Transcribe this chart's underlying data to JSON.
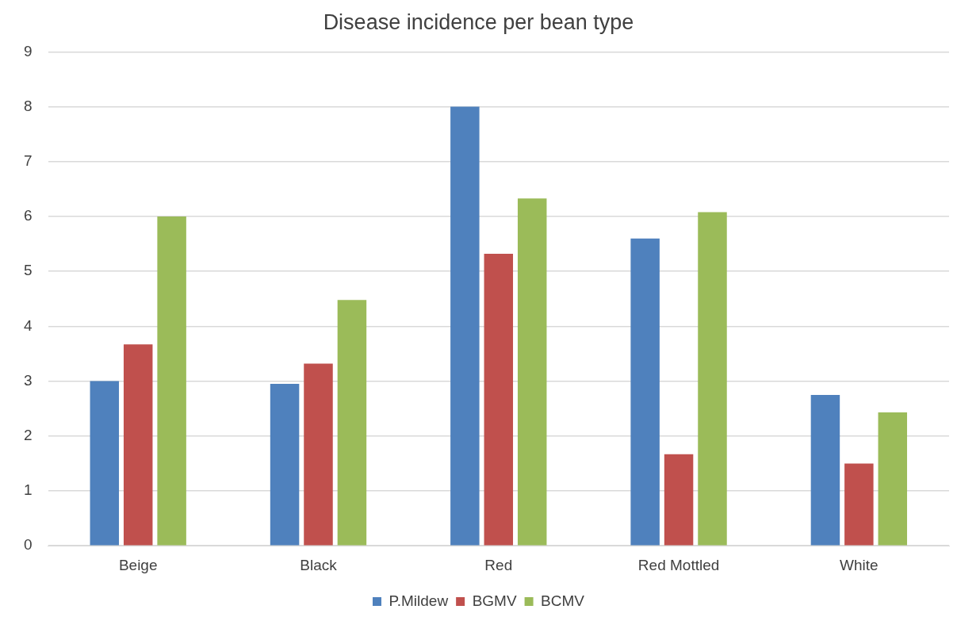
{
  "chart_data": {
    "type": "bar",
    "title": "Disease incidence per bean type",
    "categories": [
      "Beige",
      "Black",
      "Red",
      "Red Mottled",
      "White"
    ],
    "series": [
      {
        "name": "P.Mildew",
        "color": "#4f81bd",
        "values": [
          3.0,
          2.95,
          8.0,
          5.6,
          2.75
        ]
      },
      {
        "name": "BGMV",
        "color": "#c0504d",
        "values": [
          3.67,
          3.32,
          5.32,
          1.67,
          1.5
        ]
      },
      {
        "name": "BCMV",
        "color": "#9bbb59",
        "values": [
          6.0,
          4.48,
          6.33,
          6.08,
          2.43
        ]
      }
    ],
    "ylim": [
      0,
      9
    ],
    "yticks": [
      0,
      1,
      2,
      3,
      4,
      5,
      6,
      7,
      8,
      9
    ],
    "grid": "y",
    "legend": "bottom"
  }
}
